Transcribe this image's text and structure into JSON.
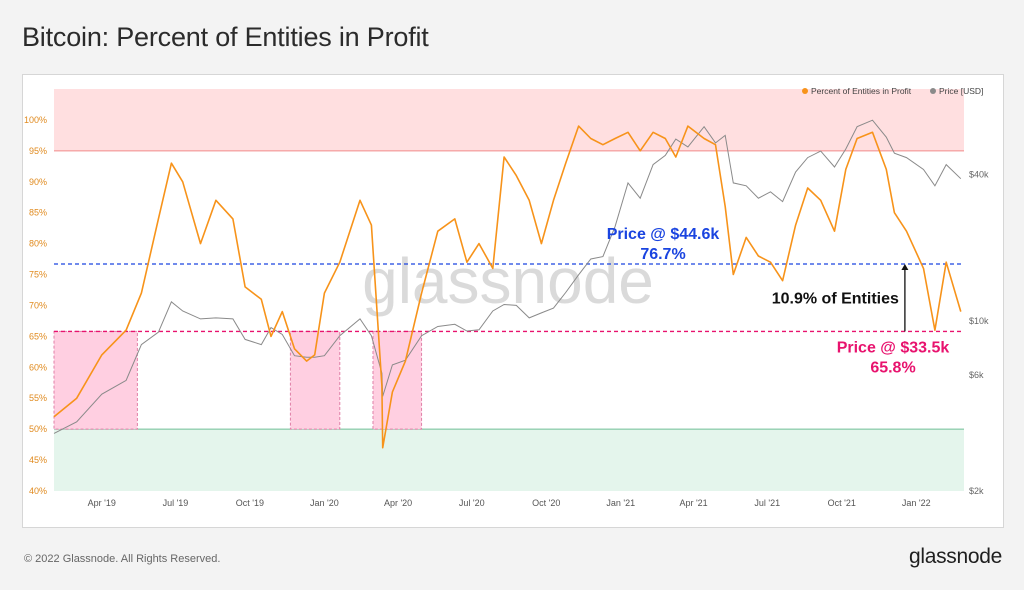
{
  "title": "Bitcoin: Percent of Entities in Profit",
  "footer": {
    "copyright": "© 2022 Glassnode. All Rights Reserved.",
    "logo": "glassnode"
  },
  "watermark": "glassnode",
  "colors": {
    "pct": "#f7931a",
    "price": "#8a8a8a",
    "blue": "#1a44e0",
    "magenta": "#e8136e",
    "upper_band": "#ffdfe0",
    "lower_band": "#e4f5ec",
    "box": "#ffcfe1"
  },
  "annotations": {
    "blue_price": "Price @ $44.6k",
    "blue_pct": "76.7%",
    "mag_price": "Price @ $33.5k",
    "mag_pct": "65.8%",
    "gap": "10.9% of Entities"
  },
  "chart_data": {
    "type": "line",
    "title": "Bitcoin: Percent of Entities in Profit",
    "legend_position": "top-right",
    "series": [
      {
        "name": "Percent of Entities in Profit",
        "axis": "left",
        "x": [
          "2019-02-01",
          "2019-03-01",
          "2019-04-01",
          "2019-05-01",
          "2019-05-20",
          "2019-06-10",
          "2019-06-26",
          "2019-07-10",
          "2019-08-01",
          "2019-08-20",
          "2019-09-10",
          "2019-09-25",
          "2019-10-15",
          "2019-10-27",
          "2019-11-10",
          "2019-11-25",
          "2019-12-10",
          "2019-12-20",
          "2020-01-01",
          "2020-01-20",
          "2020-02-14",
          "2020-02-28",
          "2020-03-12",
          "2020-03-13",
          "2020-03-25",
          "2020-04-10",
          "2020-04-30",
          "2020-05-20",
          "2020-06-10",
          "2020-06-25",
          "2020-07-10",
          "2020-07-27",
          "2020-08-10",
          "2020-08-25",
          "2020-09-10",
          "2020-09-25",
          "2020-10-10",
          "2020-10-25",
          "2020-11-10",
          "2020-11-25",
          "2020-12-10",
          "2020-12-25",
          "2021-01-10",
          "2021-01-25",
          "2021-02-10",
          "2021-02-25",
          "2021-03-10",
          "2021-03-25",
          "2021-04-14",
          "2021-04-28",
          "2021-05-10",
          "2021-05-20",
          "2021-06-05",
          "2021-06-20",
          "2021-07-05",
          "2021-07-20",
          "2021-08-05",
          "2021-08-20",
          "2021-09-05",
          "2021-09-22",
          "2021-10-06",
          "2021-10-20",
          "2021-11-08",
          "2021-11-25",
          "2021-12-05",
          "2021-12-20",
          "2022-01-10",
          "2022-01-24",
          "2022-02-07",
          "2022-02-25"
        ],
        "values": [
          52,
          55,
          62,
          66,
          72,
          84,
          93,
          90,
          80,
          87,
          84,
          73,
          71,
          65,
          69,
          63,
          61,
          62,
          72,
          77,
          87,
          83,
          57,
          47,
          56,
          61,
          72,
          82,
          84,
          77,
          80,
          76,
          94,
          91,
          87,
          80,
          87,
          93,
          99,
          97,
          96,
          97,
          98,
          95,
          98,
          97,
          94,
          99,
          97,
          96,
          86,
          75,
          81,
          78,
          77,
          74,
          83,
          89,
          87,
          82,
          92,
          97,
          98,
          92,
          85,
          82,
          76,
          66,
          77,
          69
        ]
      },
      {
        "name": "Price [USD]",
        "axis": "right",
        "x": [
          "2019-02-01",
          "2019-03-01",
          "2019-04-01",
          "2019-05-01",
          "2019-05-20",
          "2019-06-10",
          "2019-06-26",
          "2019-07-10",
          "2019-08-01",
          "2019-08-20",
          "2019-09-10",
          "2019-09-25",
          "2019-10-15",
          "2019-10-27",
          "2019-11-10",
          "2019-11-25",
          "2019-12-10",
          "2019-12-20",
          "2020-01-01",
          "2020-01-20",
          "2020-02-14",
          "2020-02-28",
          "2020-03-12",
          "2020-03-13",
          "2020-03-25",
          "2020-04-10",
          "2020-04-30",
          "2020-05-20",
          "2020-06-10",
          "2020-06-25",
          "2020-07-10",
          "2020-07-27",
          "2020-08-10",
          "2020-08-25",
          "2020-09-10",
          "2020-09-25",
          "2020-10-10",
          "2020-10-25",
          "2020-11-10",
          "2020-11-25",
          "2020-12-10",
          "2020-12-25",
          "2021-01-10",
          "2021-01-25",
          "2021-02-10",
          "2021-02-25",
          "2021-03-10",
          "2021-03-25",
          "2021-04-14",
          "2021-04-28",
          "2021-05-10",
          "2021-05-20",
          "2021-06-05",
          "2021-06-20",
          "2021-07-05",
          "2021-07-20",
          "2021-08-05",
          "2021-08-20",
          "2021-09-05",
          "2021-09-22",
          "2021-10-06",
          "2021-10-20",
          "2021-11-08",
          "2021-11-25",
          "2021-12-05",
          "2021-12-20",
          "2022-01-10",
          "2022-01-24",
          "2022-02-07",
          "2022-02-25"
        ],
        "values": [
          3450,
          3850,
          5000,
          5700,
          8000,
          9000,
          12000,
          11000,
          10200,
          10300,
          10200,
          8400,
          8000,
          9400,
          8800,
          7200,
          7100,
          7100,
          7200,
          8700,
          10200,
          8700,
          6100,
          4900,
          6600,
          6900,
          8700,
          9500,
          9700,
          9100,
          9200,
          11000,
          11700,
          11600,
          10300,
          10800,
          11300,
          13100,
          15500,
          18000,
          18400,
          24500,
          37000,
          32000,
          44000,
          48000,
          56000,
          52000,
          63000,
          54000,
          58000,
          37000,
          36000,
          32000,
          34000,
          31000,
          41000,
          47000,
          50000,
          43000,
          51000,
          63000,
          67000,
          57000,
          49000,
          47000,
          42000,
          36000,
          44000,
          38500
        ]
      }
    ],
    "left_axis": {
      "range": [
        40,
        105
      ],
      "ticks": [
        "40%",
        "45%",
        "50%",
        "55%",
        "60%",
        "65%",
        "70%",
        "75%",
        "80%",
        "85%",
        "90%",
        "95%",
        "100%"
      ]
    },
    "right_axis": {
      "scale": "log",
      "range": [
        2000,
        90000
      ],
      "ticks": [
        {
          "value": 2000,
          "label": "$2k"
        },
        {
          "value": 6000,
          "label": "$6k"
        },
        {
          "value": 10000,
          "label": "$10k"
        },
        {
          "value": 40000,
          "label": "$40k"
        }
      ]
    },
    "x_axis": {
      "range": [
        "2019-02-01",
        "2022-03-01"
      ],
      "ticks": [
        {
          "date": "2019-04-01",
          "label": "Apr '19"
        },
        {
          "date": "2019-07-01",
          "label": "Jul '19"
        },
        {
          "date": "2019-10-01",
          "label": "Oct '19"
        },
        {
          "date": "2020-01-01",
          "label": "Jan '20"
        },
        {
          "date": "2020-04-01",
          "label": "Apr '20"
        },
        {
          "date": "2020-07-01",
          "label": "Jul '20"
        },
        {
          "date": "2020-10-01",
          "label": "Oct '20"
        },
        {
          "date": "2021-01-01",
          "label": "Jan '21"
        },
        {
          "date": "2021-04-01",
          "label": "Apr '21"
        },
        {
          "date": "2021-07-01",
          "label": "Jul '21"
        },
        {
          "date": "2021-10-01",
          "label": "Oct '21"
        },
        {
          "date": "2022-01-01",
          "label": "Jan '22"
        }
      ]
    },
    "bands": {
      "upper_from": 95,
      "lower_to": 50
    },
    "reference_lines": [
      {
        "value": 76.7,
        "color": "#1a44e0"
      },
      {
        "value": 65.8,
        "color": "#e8136e"
      }
    ],
    "boxes": [
      {
        "x0": "2019-02-01",
        "x1": "2019-05-15",
        "y0": 50,
        "y1": 65.8
      },
      {
        "x0": "2019-11-20",
        "x1": "2020-01-20",
        "y0": 50,
        "y1": 65.8
      },
      {
        "x0": "2020-03-01",
        "x1": "2020-04-30",
        "y0": 50,
        "y1": 65.8
      }
    ],
    "gap_arrow": {
      "date": "2021-12-18",
      "from": 65.8,
      "to": 76.7
    },
    "grid": false
  }
}
